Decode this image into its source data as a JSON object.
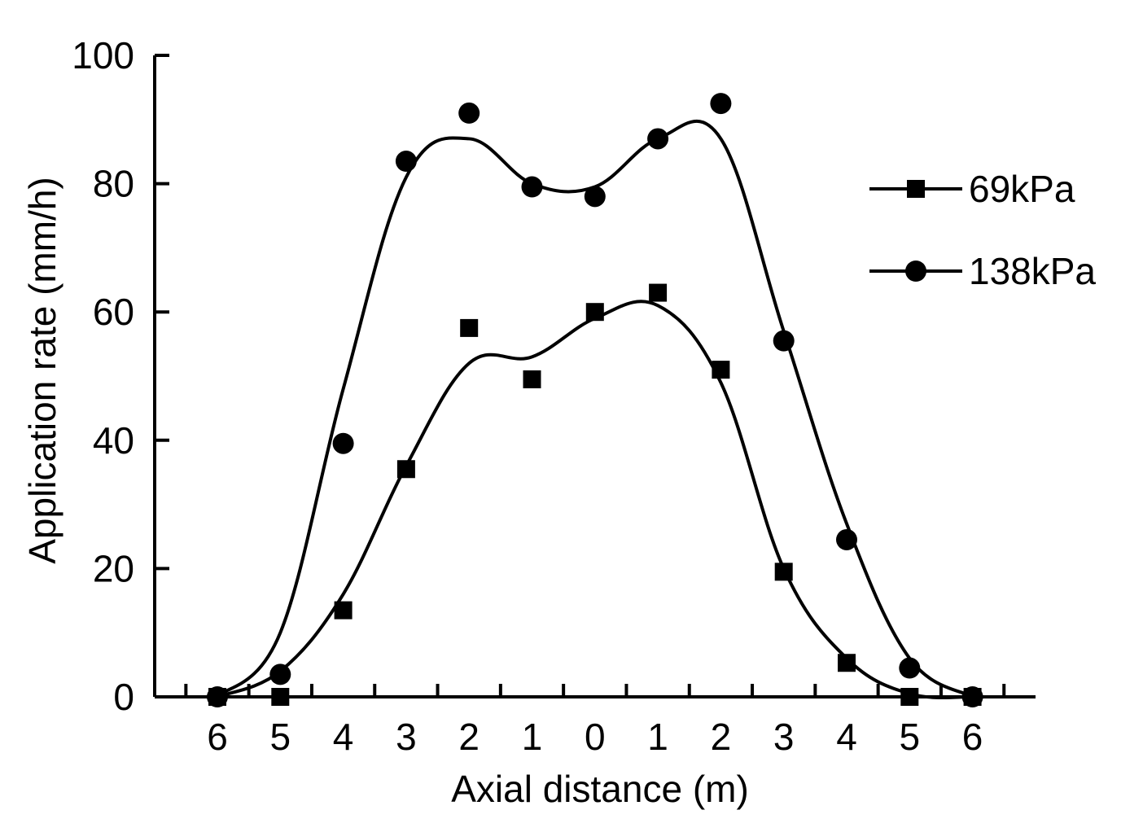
{
  "chart_data": {
    "type": "scatter",
    "title": "",
    "xlabel": "Axial distance (m)",
    "ylabel": "Application rate (mm/h)",
    "categories": [
      "6",
      "5",
      "4",
      "3",
      "2",
      "1",
      "0",
      "1",
      "2",
      "3",
      "4",
      "5",
      "6"
    ],
    "ylim": [
      0,
      100
    ],
    "yticks": [
      0,
      20,
      40,
      60,
      80,
      100
    ],
    "grid": false,
    "legend_position": "right",
    "series": [
      {
        "name": "69kPa",
        "marker": "square",
        "values": [
          0,
          0,
          13.5,
          35.5,
          57.5,
          49.5,
          60,
          63,
          51,
          19.5,
          5.3,
          0,
          0
        ],
        "fit": [
          0,
          4,
          16,
          36,
          52,
          53,
          59,
          61,
          49,
          20,
          6,
          0.5,
          0
        ]
      },
      {
        "name": "138kPa",
        "marker": "circle",
        "values": [
          0,
          3.5,
          39.5,
          83.5,
          91,
          79.5,
          78,
          87,
          92.5,
          55.5,
          24.5,
          4.5,
          0
        ],
        "fit": [
          0,
          10,
          48,
          81,
          87,
          80,
          79.5,
          87,
          87,
          57,
          27,
          6,
          0
        ]
      }
    ]
  }
}
